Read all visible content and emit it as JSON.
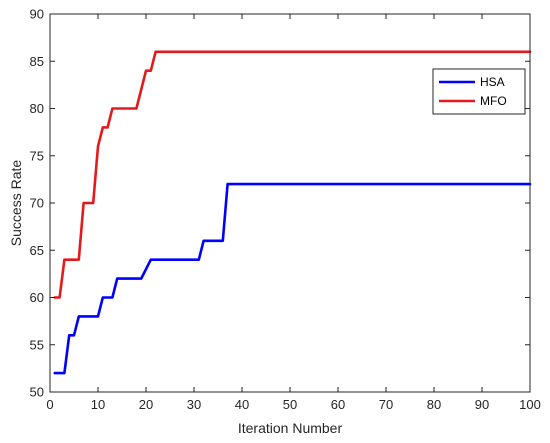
{
  "chart_data": {
    "type": "line",
    "title": "",
    "xlabel": "Iteration Number",
    "ylabel": "Success Rate",
    "xlim": [
      0,
      100
    ],
    "ylim": [
      50,
      90
    ],
    "xticks": [
      0,
      10,
      20,
      30,
      40,
      50,
      60,
      70,
      80,
      90,
      100
    ],
    "yticks": [
      50,
      55,
      60,
      65,
      70,
      75,
      80,
      85,
      90
    ],
    "grid": false,
    "legend_position": "top-right",
    "series": [
      {
        "name": "HSA",
        "color": "#0000ff",
        "x": [
          1,
          3,
          4,
          5,
          6,
          10,
          11,
          13,
          14,
          19,
          21,
          31,
          32,
          36,
          37,
          100
        ],
        "y": [
          52,
          52,
          56,
          56,
          58,
          58,
          60,
          60,
          62,
          62,
          64,
          64,
          66,
          66,
          72,
          72
        ]
      },
      {
        "name": "MFO",
        "color": "#e31a1c",
        "x": [
          1,
          2,
          3,
          6,
          7,
          8,
          9,
          10,
          11,
          12,
          13,
          18,
          20,
          21,
          22,
          100
        ],
        "y": [
          60,
          60,
          64,
          64,
          70,
          70,
          70,
          76,
          78,
          78,
          80,
          80,
          84,
          84,
          86,
          86
        ]
      }
    ]
  }
}
